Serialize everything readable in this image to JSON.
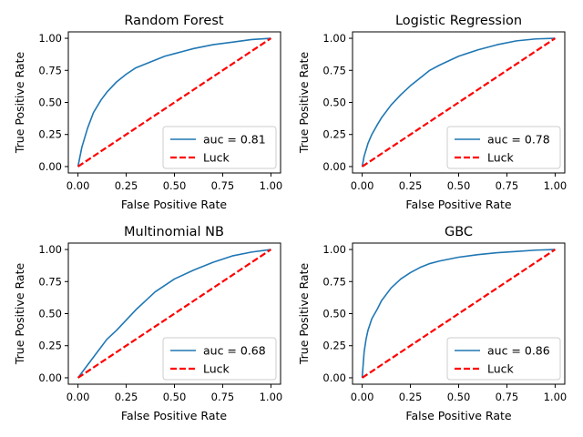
{
  "colors": {
    "roc": "#1f77b4",
    "luck": "#ff0000",
    "axes": "#000000",
    "legend_border": "#cccccc",
    "background": "#ffffff"
  },
  "chart_data": [
    {
      "type": "line",
      "title": "Random Forest",
      "xlabel": "False Positive Rate",
      "ylabel": "True Positive Rate",
      "xlim": [
        -0.05,
        1.05
      ],
      "ylim": [
        -0.05,
        1.05
      ],
      "xticks": [
        "0.00",
        "0.25",
        "0.50",
        "0.75",
        "1.00"
      ],
      "yticks": [
        "0.00",
        "0.25",
        "0.50",
        "0.75",
        "1.00"
      ],
      "grid": false,
      "legend_position": "lower-right",
      "series": [
        {
          "name": "auc = 0.81",
          "style": "solid",
          "x": [
            0.0,
            0.02,
            0.05,
            0.08,
            0.12,
            0.15,
            0.2,
            0.25,
            0.3,
            0.35,
            0.4,
            0.45,
            0.5,
            0.55,
            0.6,
            0.7,
            0.8,
            0.9,
            1.0
          ],
          "y": [
            0.0,
            0.15,
            0.3,
            0.42,
            0.52,
            0.58,
            0.66,
            0.72,
            0.77,
            0.8,
            0.83,
            0.86,
            0.88,
            0.9,
            0.92,
            0.95,
            0.97,
            0.99,
            1.0
          ]
        },
        {
          "name": "Luck",
          "style": "dashed",
          "x": [
            0,
            1
          ],
          "y": [
            0,
            1
          ]
        }
      ]
    },
    {
      "type": "line",
      "title": "Logistic Regression",
      "xlabel": "False Positive Rate",
      "ylabel": "True Positive Rate",
      "xlim": [
        -0.05,
        1.05
      ],
      "ylim": [
        -0.05,
        1.05
      ],
      "xticks": [
        "0.00",
        "0.25",
        "0.50",
        "0.75",
        "1.00"
      ],
      "yticks": [
        "0.00",
        "0.25",
        "0.50",
        "0.75",
        "1.00"
      ],
      "grid": false,
      "legend_position": "lower-right",
      "series": [
        {
          "name": "auc = 0.78",
          "style": "solid",
          "x": [
            0.0,
            0.01,
            0.03,
            0.05,
            0.08,
            0.1,
            0.15,
            0.2,
            0.25,
            0.3,
            0.35,
            0.4,
            0.5,
            0.6,
            0.7,
            0.8,
            0.9,
            1.0
          ],
          "y": [
            0.0,
            0.08,
            0.18,
            0.25,
            0.33,
            0.38,
            0.48,
            0.56,
            0.63,
            0.69,
            0.75,
            0.79,
            0.86,
            0.91,
            0.95,
            0.98,
            0.995,
            1.0
          ]
        },
        {
          "name": "Luck",
          "style": "dashed",
          "x": [
            0,
            1
          ],
          "y": [
            0,
            1
          ]
        }
      ]
    },
    {
      "type": "line",
      "title": "Multinomial NB",
      "xlabel": "False Positive Rate",
      "ylabel": "True Positive Rate",
      "xlim": [
        -0.05,
        1.05
      ],
      "ylim": [
        -0.05,
        1.05
      ],
      "xticks": [
        "0.00",
        "0.25",
        "0.50",
        "0.75",
        "1.00"
      ],
      "yticks": [
        "0.00",
        "0.25",
        "0.50",
        "0.75",
        "1.00"
      ],
      "grid": false,
      "legend_position": "lower-right",
      "series": [
        {
          "name": "auc = 0.68",
          "style": "solid",
          "x": [
            0.0,
            0.03,
            0.05,
            0.08,
            0.1,
            0.15,
            0.2,
            0.25,
            0.3,
            0.35,
            0.4,
            0.5,
            0.6,
            0.7,
            0.8,
            0.9,
            1.0
          ],
          "y": [
            0.0,
            0.06,
            0.1,
            0.16,
            0.2,
            0.3,
            0.37,
            0.45,
            0.53,
            0.6,
            0.67,
            0.77,
            0.84,
            0.9,
            0.95,
            0.98,
            1.0
          ]
        },
        {
          "name": "Luck",
          "style": "dashed",
          "x": [
            0,
            1
          ],
          "y": [
            0,
            1
          ]
        }
      ]
    },
    {
      "type": "line",
      "title": "GBC",
      "xlabel": "False Positive Rate",
      "ylabel": "True Positive Rate",
      "xlim": [
        -0.05,
        1.05
      ],
      "ylim": [
        -0.05,
        1.05
      ],
      "xticks": [
        "0.00",
        "0.25",
        "0.50",
        "0.75",
        "1.00"
      ],
      "yticks": [
        "0.00",
        "0.25",
        "0.50",
        "0.75",
        "1.00"
      ],
      "grid": false,
      "legend_position": "lower-right",
      "series": [
        {
          "name": "auc = 0.86",
          "style": "solid",
          "x": [
            0.0,
            0.005,
            0.01,
            0.02,
            0.03,
            0.05,
            0.08,
            0.1,
            0.15,
            0.2,
            0.25,
            0.3,
            0.35,
            0.4,
            0.5,
            0.6,
            0.7,
            0.8,
            0.9,
            1.0
          ],
          "y": [
            0.0,
            0.1,
            0.2,
            0.3,
            0.37,
            0.46,
            0.54,
            0.6,
            0.7,
            0.77,
            0.82,
            0.86,
            0.89,
            0.91,
            0.94,
            0.96,
            0.975,
            0.985,
            0.995,
            1.0
          ]
        },
        {
          "name": "Luck",
          "style": "dashed",
          "x": [
            0,
            1
          ],
          "y": [
            0,
            1
          ]
        }
      ]
    }
  ]
}
